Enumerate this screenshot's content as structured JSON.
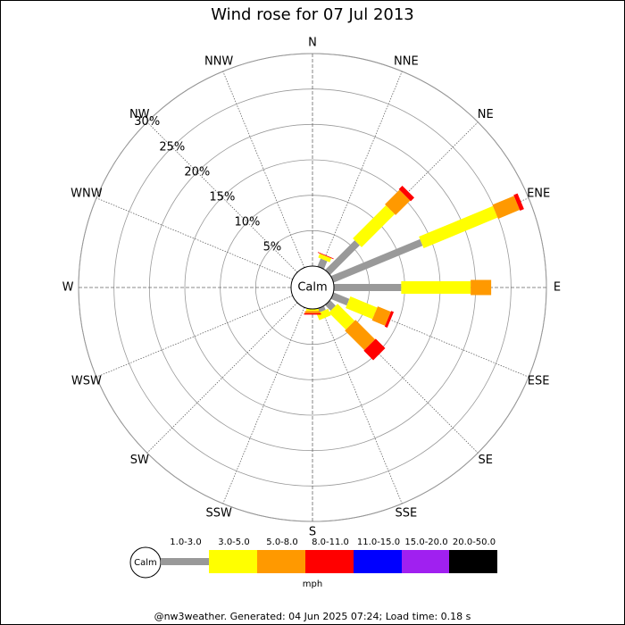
{
  "chart_data": {
    "type": "windrose",
    "title": "Wind rose for 07 Jul 2013",
    "directions": [
      "N",
      "NNE",
      "NE",
      "ENE",
      "E",
      "ESE",
      "SE",
      "SSE",
      "S",
      "SSW",
      "SW",
      "WSW",
      "W",
      "WNW",
      "NW",
      "NNW"
    ],
    "calm_label": "Calm",
    "rlim": [
      0,
      30
    ],
    "rticks": [
      {
        "value": 5,
        "label": "5%"
      },
      {
        "value": 10,
        "label": "10%"
      },
      {
        "value": 15,
        "label": "15%"
      },
      {
        "value": 20,
        "label": "20%"
      },
      {
        "value": 25,
        "label": "25%"
      },
      {
        "value": 30,
        "label": "30%"
      }
    ],
    "series": [
      {
        "name": "1.0-3.0",
        "color": "#999999",
        "values": [
          0,
          1.2,
          5.9,
          13.6,
          9.5,
          2.4,
          1.1,
          0.6,
          0,
          0,
          0,
          0,
          0,
          0,
          0,
          0
        ]
      },
      {
        "name": "3.0-5.0",
        "color": "#ffff00",
        "values": [
          0,
          0.6,
          6.6,
          11.3,
          9.8,
          4.1,
          3.4,
          1.0,
          0.3,
          0,
          0,
          0,
          0,
          0,
          0,
          0
        ]
      },
      {
        "name": "5.0-8.0",
        "color": "#ff9900",
        "values": [
          0,
          0,
          2.9,
          3.3,
          2.9,
          2.0,
          3.9,
          0,
          0.3,
          0,
          0,
          0,
          0,
          0,
          0,
          0
        ]
      },
      {
        "name": "8.0-11.0",
        "color": "#ff0000",
        "values": [
          0,
          0.1,
          0.7,
          0.6,
          0,
          0.4,
          1.9,
          0,
          0.2,
          0,
          0,
          0,
          0,
          0,
          0,
          0
        ]
      },
      {
        "name": "11.0-15.0",
        "color": "#0000ff",
        "values": [
          0,
          0,
          0,
          0,
          0,
          0,
          0,
          0,
          0,
          0,
          0,
          0,
          0,
          0,
          0,
          0
        ]
      },
      {
        "name": "15.0-20.0",
        "color": "#a020f0",
        "values": [
          0,
          0,
          0,
          0,
          0,
          0,
          0,
          0,
          0,
          0,
          0,
          0,
          0,
          0,
          0,
          0
        ]
      },
      {
        "name": "20.0-50.0",
        "color": "#000000",
        "values": [
          0,
          0,
          0,
          0,
          0,
          0,
          0,
          0,
          0,
          0,
          0,
          0,
          0,
          0,
          0,
          0
        ]
      }
    ],
    "unit": "mph",
    "footer": "@nw3weather. Generated: 04 Jun 2025 07:24; Load time: 0.18 s"
  }
}
